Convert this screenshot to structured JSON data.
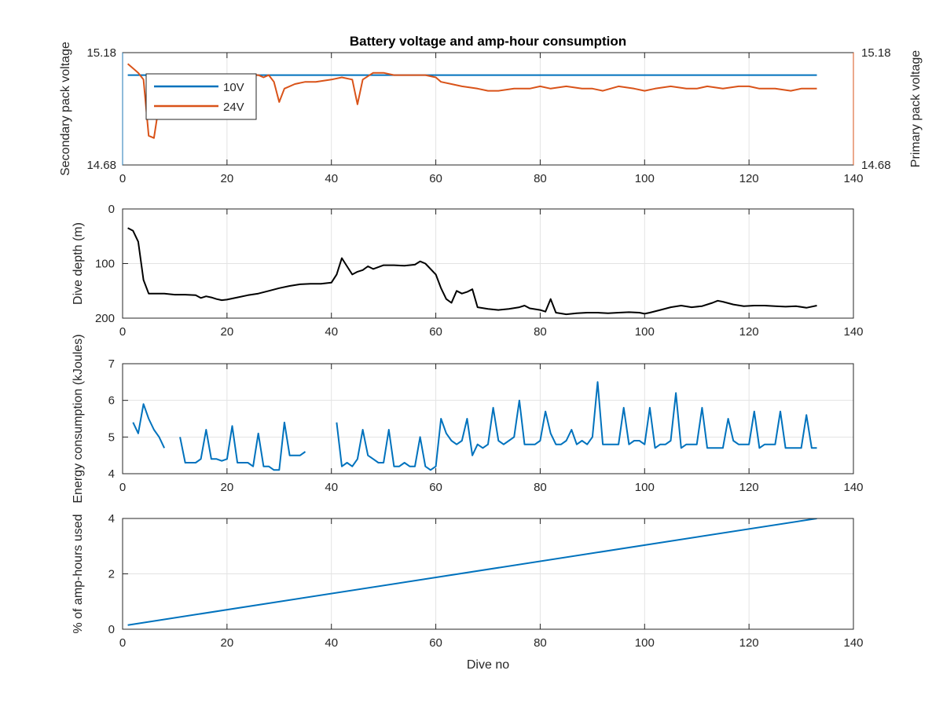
{
  "chart_data": [
    {
      "type": "line",
      "title": "Battery voltage and amp-hour consumption",
      "ylabel": "Secondary pack voltage",
      "ylabel_right": "Primary pack voltage",
      "xlim": [
        0,
        140
      ],
      "ylim": [
        14.68,
        15.18
      ],
      "ylim_right": [
        14.68,
        15.18
      ],
      "xticks": [
        "0",
        "20",
        "40",
        "60",
        "80",
        "100",
        "120",
        "140"
      ],
      "yticks_left": [
        "14.68",
        "15.18"
      ],
      "yticks_right": [
        "14.68",
        "15.18"
      ],
      "grid": true,
      "legend_position": "top-left",
      "colors": {
        "left_axis": "#1f77b4",
        "right_axis": "#d95319"
      },
      "series": [
        {
          "name": "10V",
          "axis": "left",
          "color": "#0072bd",
          "x": [
            1,
            133
          ],
          "y": [
            15.08,
            15.08
          ]
        },
        {
          "name": "24V",
          "axis": "right",
          "color": "#d95319",
          "x": [
            1,
            2,
            3,
            4,
            5,
            6,
            7,
            8,
            10,
            12,
            14,
            16,
            18,
            20,
            22,
            24,
            26,
            27,
            28,
            29,
            30,
            31,
            33,
            35,
            37,
            40,
            42,
            44,
            45,
            46,
            48,
            50,
            52,
            55,
            58,
            60,
            61,
            63,
            65,
            68,
            70,
            72,
            75,
            78,
            80,
            82,
            85,
            88,
            90,
            92,
            95,
            98,
            100,
            102,
            105,
            108,
            110,
            112,
            115,
            118,
            120,
            122,
            125,
            128,
            130,
            133
          ],
          "y": [
            15.13,
            15.11,
            15.09,
            15.06,
            14.81,
            14.8,
            14.95,
            15.07,
            15.08,
            15.08,
            15.08,
            15.08,
            15.08,
            15.08,
            15.08,
            15.08,
            15.08,
            15.07,
            15.08,
            15.05,
            14.96,
            15.02,
            15.04,
            15.05,
            15.05,
            15.06,
            15.07,
            15.06,
            14.95,
            15.06,
            15.09,
            15.09,
            15.08,
            15.08,
            15.08,
            15.07,
            15.05,
            15.04,
            15.03,
            15.02,
            15.01,
            15.01,
            15.02,
            15.02,
            15.03,
            15.02,
            15.03,
            15.02,
            15.02,
            15.01,
            15.03,
            15.02,
            15.01,
            15.02,
            15.03,
            15.02,
            15.02,
            15.03,
            15.02,
            15.03,
            15.03,
            15.02,
            15.02,
            15.01,
            15.02,
            15.02
          ]
        }
      ]
    },
    {
      "type": "line",
      "ylabel": "Dive depth (m)",
      "xlim": [
        0,
        140
      ],
      "ylim": [
        0,
        200
      ],
      "y_reversed": true,
      "xticks": [
        "0",
        "20",
        "40",
        "60",
        "80",
        "100",
        "120",
        "140"
      ],
      "yticks": [
        "0",
        "100",
        "200"
      ],
      "grid": true,
      "series": [
        {
          "color": "#000000",
          "x": [
            1,
            2,
            3,
            4,
            5,
            6,
            8,
            10,
            12,
            14,
            15,
            16,
            17,
            18,
            19,
            20,
            22,
            24,
            26,
            28,
            30,
            32,
            34,
            36,
            38,
            40,
            41,
            42,
            43,
            44,
            45,
            46,
            47,
            48,
            50,
            52,
            54,
            56,
            57,
            58,
            60,
            61,
            62,
            63,
            64,
            65,
            66,
            67,
            68,
            70,
            72,
            74,
            76,
            77,
            78,
            80,
            81,
            82,
            83,
            85,
            87,
            89,
            91,
            93,
            95,
            97,
            99,
            100,
            101,
            103,
            105,
            107,
            109,
            111,
            113,
            114,
            115,
            117,
            119,
            121,
            123,
            125,
            127,
            129,
            131,
            133
          ],
          "y": [
            35,
            40,
            60,
            130,
            155,
            155,
            155,
            157,
            157,
            158,
            163,
            160,
            162,
            165,
            167,
            166,
            162,
            158,
            155,
            150,
            145,
            141,
            138,
            137,
            137,
            135,
            120,
            90,
            105,
            120,
            115,
            112,
            105,
            110,
            103,
            103,
            104,
            102,
            96,
            100,
            120,
            145,
            165,
            172,
            150,
            155,
            152,
            147,
            180,
            183,
            185,
            183,
            180,
            177,
            182,
            185,
            188,
            165,
            190,
            193,
            191,
            190,
            190,
            191,
            190,
            189,
            190,
            192,
            190,
            185,
            180,
            177,
            180,
            178,
            172,
            168,
            170,
            175,
            178,
            177,
            177,
            178,
            179,
            178,
            181,
            177
          ]
        }
      ]
    },
    {
      "type": "line",
      "ylabel": "Energy consumption (kJoules)",
      "xlim": [
        0,
        140
      ],
      "ylim": [
        4,
        7
      ],
      "xticks": [
        "0",
        "20",
        "40",
        "60",
        "80",
        "100",
        "120",
        "140"
      ],
      "yticks": [
        "4",
        "5",
        "6",
        "7"
      ],
      "grid": true,
      "series": [
        {
          "color": "#0072bd",
          "segments": [
            {
              "x": [
                2,
                3,
                4,
                5,
                6,
                7,
                8
              ],
              "y": [
                5.4,
                5.1,
                5.9,
                5.5,
                5.2,
                5.0,
                4.7
              ]
            },
            {
              "x": [
                11,
                12,
                13,
                14,
                15,
                16,
                17,
                18,
                19,
                20,
                21,
                22,
                23,
                24,
                25,
                26,
                27,
                28,
                29,
                30,
                31,
                32,
                33,
                34,
                35
              ],
              "y": [
                5.0,
                4.3,
                4.3,
                4.3,
                4.4,
                5.2,
                4.4,
                4.4,
                4.35,
                4.4,
                5.3,
                4.3,
                4.3,
                4.3,
                4.2,
                5.1,
                4.2,
                4.2,
                4.1,
                4.1,
                5.4,
                4.5,
                4.5,
                4.5,
                4.6
              ]
            },
            {
              "x": [
                41,
                42,
                43,
                44,
                45,
                46,
                47,
                48,
                49,
                50,
                51,
                52,
                53,
                54,
                55,
                56,
                57,
                58,
                59,
                60,
                61,
                62,
                63,
                64,
                65,
                66,
                67,
                68,
                69,
                70,
                71,
                72,
                73,
                74,
                75,
                76,
                77,
                78,
                79,
                80,
                81,
                82,
                83,
                84,
                85,
                86,
                87,
                88,
                89,
                90,
                91,
                92,
                93,
                94,
                95,
                96,
                97,
                98,
                99,
                100,
                101,
                102,
                103,
                104,
                105,
                106,
                107,
                108,
                109,
                110,
                111,
                112,
                113,
                114,
                115,
                116,
                117,
                118,
                119,
                120,
                121,
                122,
                123,
                124,
                125,
                126,
                127,
                128,
                129,
                130,
                131,
                132,
                133
              ],
              "y": [
                5.4,
                4.2,
                4.3,
                4.2,
                4.4,
                5.2,
                4.5,
                4.4,
                4.3,
                4.3,
                5.2,
                4.2,
                4.2,
                4.3,
                4.2,
                4.2,
                5.0,
                4.2,
                4.1,
                4.2,
                5.5,
                5.1,
                4.9,
                4.8,
                4.9,
                5.5,
                4.5,
                4.8,
                4.7,
                4.8,
                5.8,
                4.9,
                4.8,
                4.9,
                5.0,
                6.0,
                4.8,
                4.8,
                4.8,
                4.9,
                5.7,
                5.1,
                4.8,
                4.8,
                4.9,
                5.2,
                4.8,
                4.9,
                4.8,
                5.0,
                6.5,
                4.8,
                4.8,
                4.8,
                4.8,
                5.8,
                4.8,
                4.9,
                4.9,
                4.8,
                5.8,
                4.7,
                4.8,
                4.8,
                4.9,
                6.2,
                4.7,
                4.8,
                4.8,
                4.8,
                5.8,
                4.7,
                4.7,
                4.7,
                4.7,
                5.5,
                4.9,
                4.8,
                4.8,
                4.8,
                5.7,
                4.7,
                4.8,
                4.8,
                4.8,
                5.7,
                4.7,
                4.7,
                4.7,
                4.7,
                5.6,
                4.7,
                4.7
              ]
            }
          ]
        }
      ]
    },
    {
      "type": "line",
      "ylabel": "% of amp-hours used",
      "xlabel": "Dive no",
      "xlim": [
        0,
        140
      ],
      "ylim": [
        0,
        4
      ],
      "xticks": [
        "0",
        "20",
        "40",
        "60",
        "80",
        "100",
        "120",
        "140"
      ],
      "yticks": [
        "0",
        "2",
        "4"
      ],
      "grid": true,
      "series": [
        {
          "color": "#0072bd",
          "x": [
            1,
            133
          ],
          "y": [
            0.15,
            4.0
          ]
        }
      ]
    }
  ]
}
